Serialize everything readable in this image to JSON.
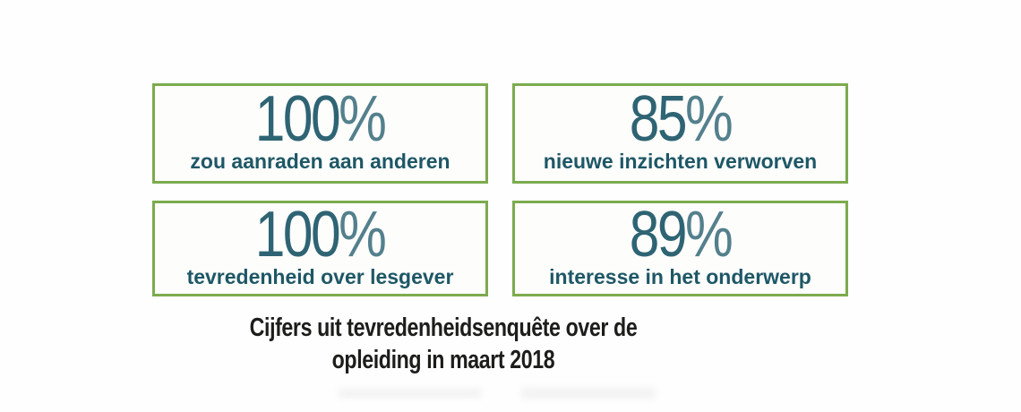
{
  "colors": {
    "box-border": "#7cab4e",
    "number-text": "#2e6473",
    "label-text": "#1e5766",
    "caption-text": "#1d1d1b"
  },
  "stats": [
    {
      "value": "100",
      "unit": "%",
      "label": "zou aanraden aan anderen"
    },
    {
      "value": "85",
      "unit": "%",
      "label": "nieuwe inzichten verworven"
    },
    {
      "value": "100",
      "unit": "%",
      "label": "tevredenheid over lesgever"
    },
    {
      "value": "89",
      "unit": "%",
      "label": "interesse in het onderwerp"
    }
  ],
  "caption": {
    "line1": "Cijfers uit tevredenheidsenquête over de",
    "line2": "opleiding in maart 2018"
  },
  "chart_data": {
    "type": "table",
    "categories": [
      "zou aanraden aan anderen",
      "nieuwe inzichten verworven",
      "tevredenheid over lesgever",
      "interesse in het onderwerp"
    ],
    "values": [
      100,
      85,
      100,
      89
    ],
    "unit": "%",
    "title": "Cijfers uit tevredenheidsenquête over de opleiding in maart 2018",
    "layout": "2x2 bordered stat cards with caption below, no axes, no legend"
  }
}
